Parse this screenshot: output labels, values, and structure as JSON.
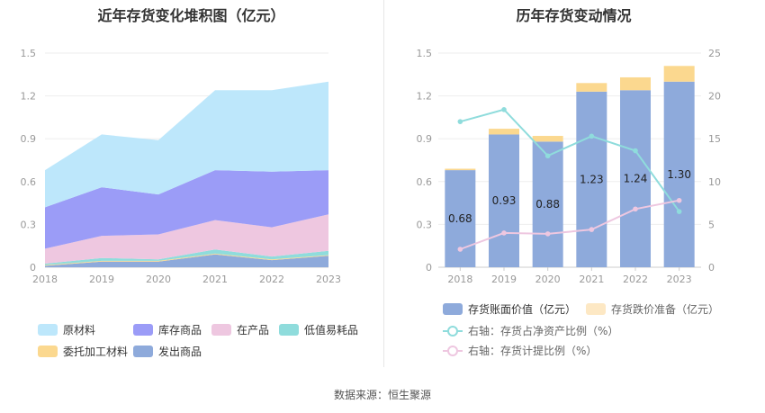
{
  "chart_data": [
    {
      "type": "area",
      "title": "近年存货变化堆积图（亿元）",
      "categories": [
        "2018",
        "2019",
        "2020",
        "2021",
        "2022",
        "2023"
      ],
      "ylim": [
        0,
        1.5
      ],
      "yticks": [
        "0",
        "0.3",
        "0.6",
        "0.9",
        "1.2",
        "1.5"
      ],
      "stacked": true,
      "series": [
        {
          "name": "发出商品",
          "color": "#8eaadb",
          "values": [
            0.01,
            0.04,
            0.04,
            0.09,
            0.05,
            0.08
          ]
        },
        {
          "name": "委托加工材料",
          "color": "#fbd88f",
          "values": [
            0.005,
            0.005,
            0.005,
            0.005,
            0.005,
            0.005
          ]
        },
        {
          "name": "低值易耗品",
          "color": "#8fdcdc",
          "values": [
            0.01,
            0.02,
            0.01,
            0.03,
            0.02,
            0.03
          ]
        },
        {
          "name": "在产品",
          "color": "#eec7e0",
          "values": [
            0.105,
            0.155,
            0.175,
            0.205,
            0.205,
            0.255
          ]
        },
        {
          "name": "库存商品",
          "color": "#9b9cf7",
          "values": [
            0.29,
            0.34,
            0.28,
            0.35,
            0.39,
            0.31
          ]
        },
        {
          "name": "原材料",
          "color": "#bde7fb",
          "values": [
            0.26,
            0.37,
            0.38,
            0.56,
            0.57,
            0.62
          ]
        }
      ],
      "legend_order": [
        "原材料",
        "库存商品",
        "在产品",
        "低值易耗品",
        "委托加工材料",
        "发出商品"
      ],
      "legend_position": "bottom"
    },
    {
      "type": "bar",
      "title": "历年存货变动情况",
      "categories": [
        "2018",
        "2019",
        "2020",
        "2021",
        "2022",
        "2023"
      ],
      "ylim": [
        0,
        1.5
      ],
      "yticks": [
        "0",
        "0.3",
        "0.6",
        "0.9",
        "1.2",
        "1.5"
      ],
      "y2lim": [
        0,
        25
      ],
      "y2ticks": [
        "0",
        "5",
        "10",
        "15",
        "20",
        "25"
      ],
      "stacked": true,
      "series": [
        {
          "name": "存货账面价值（亿元）",
          "color": "#8eaadb",
          "values": [
            0.68,
            0.93,
            0.88,
            1.23,
            1.24,
            1.3
          ],
          "labels": [
            "0.68",
            "0.93",
            "0.88",
            "1.23",
            "1.24",
            "1.30"
          ]
        },
        {
          "name": "存货跌价准备（亿元）",
          "color": "#fbd88f",
          "values": [
            0.01,
            0.04,
            0.04,
            0.06,
            0.09,
            0.11
          ]
        }
      ],
      "lines": [
        {
          "name": "右轴：存货占净资产比例（%）",
          "color": "#8fdcdc",
          "axis": "right",
          "values": [
            17.0,
            18.4,
            13.0,
            15.3,
            13.6,
            6.5
          ]
        },
        {
          "name": "右轴：存货计提比例（%）",
          "color": "#eec7e0",
          "axis": "right",
          "values": [
            2.1,
            4.0,
            3.9,
            4.4,
            6.8,
            7.8
          ]
        }
      ],
      "legend_position": "bottom"
    }
  ],
  "source_text": "数据来源：恒生聚源"
}
